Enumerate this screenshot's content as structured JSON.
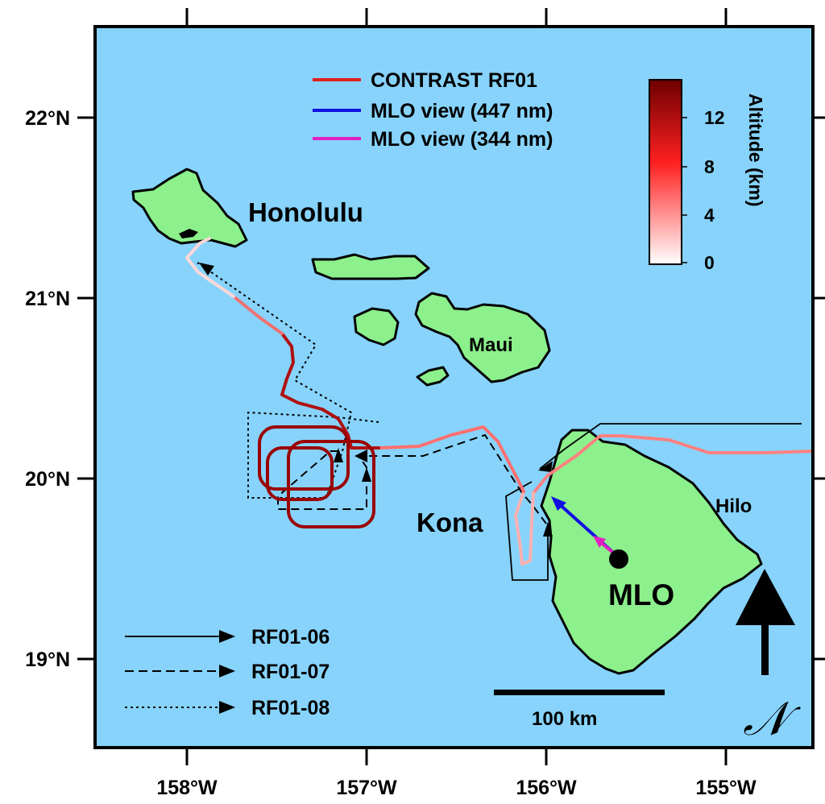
{
  "colors": {
    "ocean": "#87d3fb",
    "land": "#8cf08c",
    "flight_track": "#e02020",
    "mlo_447": "#1010e0",
    "mlo_344": "#e020c0"
  },
  "axes": {
    "x_ticks": [
      "158°W",
      "157°W",
      "156°W",
      "155°W"
    ],
    "y_ticks": [
      "22°N",
      "21°N",
      "20°N",
      "19°N"
    ]
  },
  "places": {
    "honolulu": "Honolulu",
    "maui": "Maui",
    "kona": "Kona",
    "hilo": "Hilo",
    "mlo": "MLO"
  },
  "legend": {
    "contrast": "CONTRAST RF01",
    "mlo_447": "MLO view (447 nm)",
    "mlo_344": "MLO view (344 nm)"
  },
  "track_legend": {
    "rf06": "RF01-06",
    "rf07": "RF01-07",
    "rf08": "RF01-08"
  },
  "colorbar": {
    "title": "Altitude (km)",
    "ticks": [
      "12",
      "8",
      "4",
      "0"
    ],
    "min": 0,
    "max": 14
  },
  "scale_bar": {
    "label": "100 km"
  },
  "north_arrow": {
    "label": "𝒩"
  }
}
